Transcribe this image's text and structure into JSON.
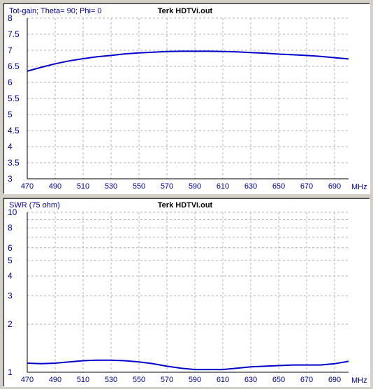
{
  "charts": {
    "gain": {
      "title": "Terk HDTVi.out",
      "ylabel": "Tot-gain; Theta= 90; Phi= 0",
      "xunit": "MHz"
    },
    "swr": {
      "title": "Terk HDTVi.out",
      "ylabel": "SWR (75 ohm)",
      "xunit": "MHz"
    }
  },
  "colors": {
    "curve": "#0000cc",
    "grid": "#b0b0b0",
    "axis_text": "#00008b"
  },
  "chart_data": [
    {
      "type": "line",
      "title": "Terk HDTVi.out",
      "ylabel": "Tot-gain; Theta= 90; Phi= 0",
      "xlabel": "MHz",
      "scale": "linear",
      "xlim": [
        470,
        700
      ],
      "ylim": [
        3,
        8
      ],
      "grid": true,
      "x_ticks": [
        470,
        490,
        510,
        530,
        550,
        570,
        590,
        610,
        630,
        650,
        670,
        690
      ],
      "y_ticks": [
        "3",
        "3.5",
        "4",
        "4.5",
        "5",
        "5.5",
        "6",
        "6.5",
        "7",
        "7.5",
        "8"
      ],
      "y_tick_values": [
        3,
        3.5,
        4,
        4.5,
        5,
        5.5,
        6,
        6.5,
        7,
        7.5,
        8
      ],
      "series": [
        {
          "x": [
            470,
            480,
            490,
            500,
            510,
            520,
            530,
            540,
            550,
            560,
            570,
            580,
            590,
            600,
            610,
            620,
            630,
            640,
            650,
            660,
            670,
            680,
            690,
            700
          ],
          "y": [
            6.35,
            6.47,
            6.58,
            6.67,
            6.74,
            6.8,
            6.84,
            6.89,
            6.92,
            6.94,
            6.96,
            6.97,
            6.97,
            6.97,
            6.96,
            6.95,
            6.93,
            6.91,
            6.88,
            6.86,
            6.84,
            6.81,
            6.77,
            6.73
          ]
        }
      ]
    },
    {
      "type": "line",
      "title": "Terk HDTVi.out",
      "ylabel": "SWR (75 ohm)",
      "xlabel": "MHz",
      "scale": "log",
      "xlim": [
        470,
        700
      ],
      "ylim": [
        1,
        10
      ],
      "grid": true,
      "x_ticks": [
        470,
        490,
        510,
        530,
        550,
        570,
        590,
        610,
        630,
        650,
        670,
        690
      ],
      "y_ticks": [
        "1",
        "2",
        "3",
        "4",
        "5",
        "6",
        "8",
        "10"
      ],
      "y_tick_values": [
        1,
        2,
        3,
        4,
        5,
        6,
        8,
        10
      ],
      "y_grid_values": [
        1,
        2,
        3,
        4,
        5,
        6,
        7,
        8,
        9,
        10
      ],
      "series": [
        {
          "x": [
            470,
            480,
            490,
            500,
            510,
            520,
            530,
            540,
            550,
            560,
            570,
            580,
            590,
            600,
            610,
            620,
            630,
            640,
            650,
            660,
            670,
            680,
            690,
            700
          ],
          "y": [
            1.14,
            1.13,
            1.14,
            1.16,
            1.18,
            1.19,
            1.19,
            1.18,
            1.16,
            1.13,
            1.09,
            1.06,
            1.04,
            1.04,
            1.04,
            1.06,
            1.08,
            1.09,
            1.1,
            1.11,
            1.11,
            1.11,
            1.13,
            1.17
          ]
        }
      ]
    }
  ]
}
